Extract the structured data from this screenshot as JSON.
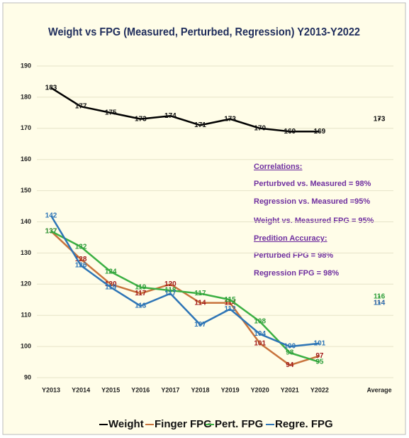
{
  "chart_data": {
    "type": "line",
    "title": "Weight vs FPG (Measured, Perturbed, Regression) Y2013-Y2022",
    "categories": [
      "Y2013",
      "Y2014",
      "Y2015",
      "Y2016",
      "Y2017",
      "Y2018",
      "Y2019",
      "Y2020",
      "Y2021",
      "Y2022",
      null,
      "Average"
    ],
    "series": [
      {
        "name": "Weight",
        "color": "#000000",
        "label_color": "#111111",
        "values": [
          183,
          177,
          175,
          173,
          174,
          171,
          173,
          170,
          169,
          169,
          null,
          173
        ]
      },
      {
        "name": "Finger FPG",
        "color": "#c8733c",
        "label_color": "#a01818",
        "values": [
          137,
          128,
          120,
          117,
          120,
          114,
          114,
          101,
          94,
          97,
          null,
          114
        ]
      },
      {
        "name": "Pert. FPG",
        "color": "#3cb043",
        "label_color": "#2e9e3a",
        "values": [
          137,
          132,
          124,
          119,
          118,
          117,
          115,
          108,
          98,
          95,
          null,
          116
        ]
      },
      {
        "name": "Regre. FPG",
        "color": "#2e75b6",
        "label_color": "#2e75b6",
        "values": [
          142,
          126,
          119,
          113,
          117,
          107,
          112,
          104,
          100,
          101,
          null,
          114
        ]
      }
    ],
    "ylim": [
      90,
      190
    ],
    "yticks": [
      90,
      100,
      110,
      120,
      130,
      140,
      150,
      160,
      170,
      180,
      190
    ],
    "grid": true,
    "legend": "bottom",
    "annotations": [
      "Correlations:",
      "Perturbved vs. Measured = 98%",
      "Regression vs. Measured =95%",
      "Weight vs. Measured FPG = 95%",
      "Predition Accuracy:",
      "Perturbed FPG = 98%",
      "Regression FPG = 98%"
    ]
  }
}
